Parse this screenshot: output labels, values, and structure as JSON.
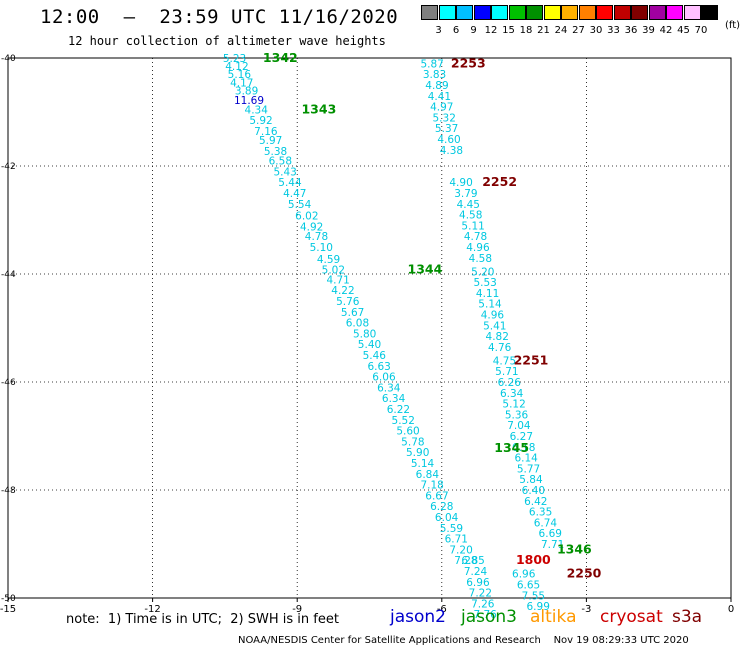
{
  "header": {
    "title": "12:00  –  23:59 UTC 11/16/2020",
    "subtitle": "12 hour collection of altimeter wave heights"
  },
  "legend": {
    "unit": "(ft)",
    "labels": [
      "3",
      "6",
      "9",
      "12",
      "15",
      "18",
      "21",
      "24",
      "27",
      "30",
      "33",
      "36",
      "39",
      "42",
      "45",
      "70"
    ],
    "colors": [
      "#7f7f7f",
      "#00ffff",
      "#00bfff",
      "#0000ff",
      "#00ffff",
      "#00c000",
      "#009000",
      "#ffff00",
      "#ffb000",
      "#ff8000",
      "#ff0000",
      "#c00000",
      "#800000",
      "#a000a0",
      "#ff00ff",
      "#ffc0ff",
      "#000000"
    ]
  },
  "chart_data": {
    "type": "scatter",
    "xlim": [
      -15,
      0
    ],
    "ylim": [
      -50,
      -40
    ],
    "xticks": [
      "-15",
      "-12",
      "-9",
      "-6",
      "-3",
      "0"
    ],
    "yticks": [
      "-40",
      "-42",
      "-44",
      "-46",
      "-48",
      "-50"
    ],
    "grid": true,
    "track_colors": {
      "jason2": "#0000cc",
      "jason3": "#009000",
      "altika": "#ff9900",
      "cryosat": "#cc0000",
      "s3a": "#800000"
    },
    "series": [
      {
        "name": "track-A",
        "default_color": "#00c8e0",
        "points": [
          {
            "x": -10.3,
            "y": -40.0,
            "label": "5.23"
          },
          {
            "x": -10.25,
            "y": -40.15,
            "label": "4.12"
          },
          {
            "x": -10.2,
            "y": -40.3,
            "label": "5.16"
          },
          {
            "x": -10.15,
            "y": -40.45,
            "label": "4.17"
          },
          {
            "x": -10.05,
            "y": -40.6,
            "label": "3.89"
          },
          {
            "x": -10.0,
            "y": -40.78,
            "label": "11.69",
            "color": "#0000cc"
          },
          {
            "x": -9.85,
            "y": -40.95,
            "label": "4.34"
          },
          {
            "x": -9.75,
            "y": -41.15,
            "label": "5.92"
          },
          {
            "x": -9.65,
            "y": -41.35,
            "label": "7.16"
          },
          {
            "x": -9.55,
            "y": -41.52,
            "label": "5.97"
          },
          {
            "x": -9.45,
            "y": -41.72,
            "label": "5.38"
          },
          {
            "x": -9.35,
            "y": -41.9,
            "label": "6.58"
          },
          {
            "x": -9.25,
            "y": -42.1,
            "label": "5.43"
          },
          {
            "x": -9.15,
            "y": -42.3,
            "label": "5.44"
          },
          {
            "x": -9.05,
            "y": -42.5,
            "label": "4.47"
          },
          {
            "x": -8.95,
            "y": -42.7,
            "label": "5.54"
          },
          {
            "x": -8.8,
            "y": -42.92,
            "label": "6.02"
          },
          {
            "x": -8.7,
            "y": -43.12,
            "label": "4.92"
          },
          {
            "x": -8.6,
            "y": -43.3,
            "label": "4.78"
          },
          {
            "x": -8.5,
            "y": -43.5,
            "label": "5.10"
          },
          {
            "x": -8.35,
            "y": -43.72,
            "label": "4.59"
          },
          {
            "x": -8.25,
            "y": -43.92,
            "label": "5.02"
          },
          {
            "x": -8.15,
            "y": -44.1,
            "label": "4.71"
          },
          {
            "x": -8.05,
            "y": -44.3,
            "label": "4.22"
          },
          {
            "x": -7.95,
            "y": -44.5,
            "label": "5.76"
          },
          {
            "x": -7.85,
            "y": -44.7,
            "label": "5.67"
          },
          {
            "x": -7.75,
            "y": -44.9,
            "label": "6.08"
          },
          {
            "x": -7.6,
            "y": -45.1,
            "label": "5.80"
          },
          {
            "x": -7.5,
            "y": -45.3,
            "label": "5.40"
          },
          {
            "x": -7.4,
            "y": -45.5,
            "label": "5.46"
          },
          {
            "x": -7.3,
            "y": -45.7,
            "label": "6.63"
          },
          {
            "x": -7.2,
            "y": -45.9,
            "label": "6.06"
          },
          {
            "x": -7.1,
            "y": -46.1,
            "label": "6.34"
          },
          {
            "x": -7.0,
            "y": -46.3,
            "label": "6.34"
          },
          {
            "x": -6.9,
            "y": -46.5,
            "label": "6.22"
          },
          {
            "x": -6.8,
            "y": -46.7,
            "label": "5.52"
          },
          {
            "x": -6.7,
            "y": -46.9,
            "label": "5.60"
          },
          {
            "x": -6.6,
            "y": -47.1,
            "label": "5.78"
          },
          {
            "x": -6.5,
            "y": -47.3,
            "label": "5.90"
          },
          {
            "x": -6.4,
            "y": -47.5,
            "label": "5.14"
          },
          {
            "x": -6.3,
            "y": -47.7,
            "label": "6.84"
          },
          {
            "x": -6.2,
            "y": -47.9,
            "label": "7.18"
          },
          {
            "x": -6.1,
            "y": -48.1,
            "label": "6.67"
          },
          {
            "x": -6.0,
            "y": -48.3,
            "label": "6.28"
          },
          {
            "x": -5.9,
            "y": -48.5,
            "label": "6.04"
          },
          {
            "x": -5.8,
            "y": -48.7,
            "label": "5.59"
          },
          {
            "x": -5.7,
            "y": -48.9,
            "label": "6.71"
          },
          {
            "x": -5.6,
            "y": -49.1,
            "label": "7.20"
          },
          {
            "x": -5.5,
            "y": -49.3,
            "label": "7.28"
          }
        ]
      },
      {
        "name": "track-B",
        "default_color": "#00c8e0",
        "points": [
          {
            "x": -6.2,
            "y": -40.1,
            "label": "5.87"
          },
          {
            "x": -6.15,
            "y": -40.3,
            "label": "3.83"
          },
          {
            "x": -6.1,
            "y": -40.5,
            "label": "4.89"
          },
          {
            "x": -6.05,
            "y": -40.7,
            "label": "4.41"
          },
          {
            "x": -6.0,
            "y": -40.9,
            "label": "4.97"
          },
          {
            "x": -5.95,
            "y": -41.1,
            "label": "5.32"
          },
          {
            "x": -5.9,
            "y": -41.3,
            "label": "5.37"
          },
          {
            "x": -5.85,
            "y": -41.5,
            "label": "4.60"
          },
          {
            "x": -5.8,
            "y": -41.7,
            "label": "4.38"
          },
          {
            "x": -5.6,
            "y": -42.3,
            "label": "4.90"
          },
          {
            "x": -5.5,
            "y": -42.5,
            "label": "3.79"
          },
          {
            "x": -5.45,
            "y": -42.7,
            "label": "4.45"
          },
          {
            "x": -5.4,
            "y": -42.9,
            "label": "4.58"
          },
          {
            "x": -5.35,
            "y": -43.1,
            "label": "5.11"
          },
          {
            "x": -5.3,
            "y": -43.3,
            "label": "4.78"
          },
          {
            "x": -5.25,
            "y": -43.5,
            "label": "4.96"
          },
          {
            "x": -5.2,
            "y": -43.7,
            "label": "4.58"
          },
          {
            "x": -5.15,
            "y": -43.95,
            "label": "5.20"
          },
          {
            "x": -5.1,
            "y": -44.15,
            "label": "5.53"
          },
          {
            "x": -5.05,
            "y": -44.35,
            "label": "4.11"
          },
          {
            "x": -5.0,
            "y": -44.55,
            "label": "5.14"
          },
          {
            "x": -4.95,
            "y": -44.75,
            "label": "4.96"
          },
          {
            "x": -4.9,
            "y": -44.95,
            "label": "5.41"
          },
          {
            "x": -4.85,
            "y": -45.15,
            "label": "4.82"
          },
          {
            "x": -4.8,
            "y": -45.35,
            "label": "4.76"
          },
          {
            "x": -4.7,
            "y": -45.6,
            "label": "4.75"
          },
          {
            "x": -4.65,
            "y": -45.8,
            "label": "5.71"
          },
          {
            "x": -4.6,
            "y": -46.0,
            "label": "6.26"
          },
          {
            "x": -4.55,
            "y": -46.2,
            "label": "6.34"
          },
          {
            "x": -4.5,
            "y": -46.4,
            "label": "5.12"
          },
          {
            "x": -4.45,
            "y": -46.6,
            "label": "5.36"
          },
          {
            "x": -4.4,
            "y": -46.8,
            "label": "7.04"
          },
          {
            "x": -4.35,
            "y": -47.0,
            "label": "6.27"
          },
          {
            "x": -4.3,
            "y": -47.2,
            "label": "6.18"
          },
          {
            "x": -4.25,
            "y": -47.4,
            "label": "6.14"
          },
          {
            "x": -4.2,
            "y": -47.6,
            "label": "5.77"
          },
          {
            "x": -4.15,
            "y": -47.8,
            "label": "5.84"
          },
          {
            "x": -4.1,
            "y": -48.0,
            "label": "6.40"
          },
          {
            "x": -4.05,
            "y": -48.2,
            "label": "6.42"
          },
          {
            "x": -3.95,
            "y": -48.4,
            "label": "6.35"
          },
          {
            "x": -3.85,
            "y": -48.6,
            "label": "6.74"
          },
          {
            "x": -3.75,
            "y": -48.8,
            "label": "6.69"
          },
          {
            "x": -3.7,
            "y": -49.0,
            "label": "7.71"
          }
        ]
      },
      {
        "name": "track-C",
        "default_color": "#00c8e0",
        "points": [
          {
            "x": -5.35,
            "y": -49.3,
            "label": "6.85"
          },
          {
            "x": -5.3,
            "y": -49.5,
            "label": "7.24"
          },
          {
            "x": -5.25,
            "y": -49.7,
            "label": "6.96"
          },
          {
            "x": -5.2,
            "y": -49.9,
            "label": "7.22"
          },
          {
            "x": -5.15,
            "y": -50.1,
            "label": "7.26"
          },
          {
            "x": -5.1,
            "y": -50.3,
            "label": "7.76"
          },
          {
            "x": -4.3,
            "y": -49.55,
            "label": "6.96"
          },
          {
            "x": -4.2,
            "y": -49.75,
            "label": "6.65"
          },
          {
            "x": -4.1,
            "y": -49.95,
            "label": "7.55"
          },
          {
            "x": -4.0,
            "y": -50.15,
            "label": "6.99"
          }
        ]
      }
    ],
    "annotations": [
      {
        "x": -9.35,
        "y": -40.0,
        "text": "1342",
        "mission": "jason3"
      },
      {
        "x": -8.55,
        "y": -40.95,
        "text": "1343",
        "mission": "jason3"
      },
      {
        "x": -6.35,
        "y": -43.92,
        "text": "1344",
        "mission": "jason3"
      },
      {
        "x": -4.55,
        "y": -47.22,
        "text": "1345",
        "mission": "jason3"
      },
      {
        "x": -3.25,
        "y": -49.1,
        "text": "1346",
        "mission": "jason3"
      },
      {
        "x": -5.45,
        "y": -40.1,
        "text": "2253",
        "mission": "s3a"
      },
      {
        "x": -4.8,
        "y": -42.3,
        "text": "2252",
        "mission": "s3a"
      },
      {
        "x": -4.15,
        "y": -45.6,
        "text": "2251",
        "mission": "s3a"
      },
      {
        "x": -3.05,
        "y": -49.55,
        "text": "2250",
        "mission": "s3a"
      },
      {
        "x": -4.1,
        "y": -49.3,
        "text": "1800",
        "mission": "cryosat"
      }
    ]
  },
  "footer": {
    "note": "note:  1) Time is in UTC;  2) SWH is in feet",
    "missions": [
      {
        "label": "jason2",
        "color": "#0000cc"
      },
      {
        "label": "jason3",
        "color": "#009000"
      },
      {
        "label": "altika",
        "color": "#ff9900"
      },
      {
        "label": "cryosat",
        "color": "#cc0000"
      },
      {
        "label": "s3a",
        "color": "#800000"
      }
    ],
    "credit": "NOAA/NESDIS Center for Satellite Applications and Research    Nov 19 08:29:33 UTC 2020"
  }
}
